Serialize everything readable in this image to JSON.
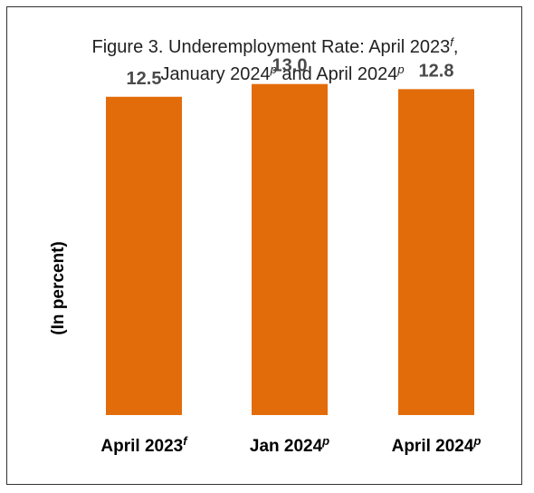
{
  "chart_data": {
    "type": "bar",
    "title_line1": "Figure 3.  Underemployment Rate: April 2023",
    "title_line1_sup": "f",
    "title_line2_a": "January 2024",
    "title_line2_a_sup": "p",
    "title_line2_mid": " and April 2024",
    "title_line2_b_sup": "p",
    "title_comma": ",",
    "ylabel": "(In percent)",
    "xlabel": "",
    "categories": [
      {
        "label": "April 2023",
        "sup": "f"
      },
      {
        "label": "Jan 2024",
        "sup": "p"
      },
      {
        "label": "April 2024",
        "sup": "p"
      }
    ],
    "values": [
      12.5,
      13.0,
      12.8
    ],
    "value_labels": [
      "12.5",
      "13.0",
      "12.8"
    ],
    "ylim": [
      0,
      16.3
    ],
    "grid": false,
    "legend": "none",
    "bar_color": "#E36C0A"
  }
}
